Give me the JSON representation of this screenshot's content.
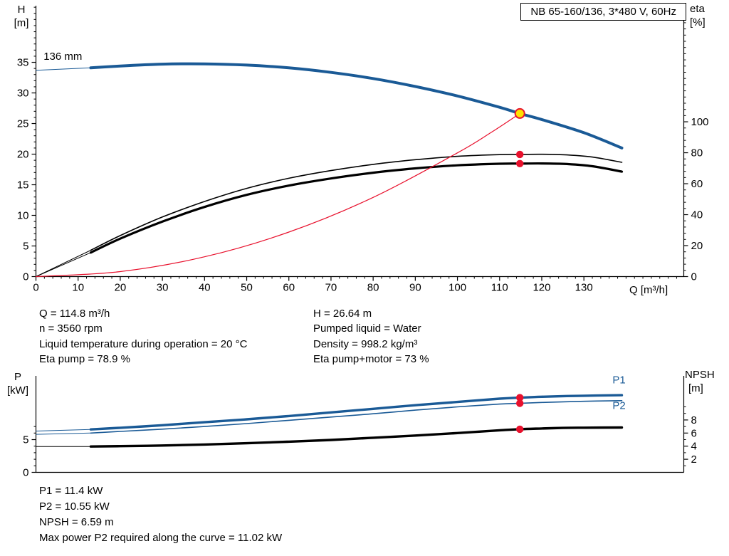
{
  "header": {
    "title": "NB 65-160/136, 3*480 V, 60Hz"
  },
  "axis_labels": {
    "h": "H",
    "h_unit": "[m]",
    "eta": "eta",
    "eta_unit": "[%]",
    "q": "Q [m³/h]",
    "p": "P",
    "p_unit": "[kW]",
    "npsh": "NPSH",
    "npsh_unit": "[m]"
  },
  "operating_data": {
    "left": [
      "Q = 114.8 m³/h",
      "n = 3560 rpm",
      "Liquid temperature during operation = 20 °C",
      "Eta pump = 78.9 %"
    ],
    "right": [
      "H = 26.64 m",
      "Pumped liquid = Water",
      "Density = 998.2 kg/m³",
      "Eta pump+motor = 73 %"
    ]
  },
  "results": [
    "P1 = 11.4 kW",
    "P2 = 10.55 kW",
    "NPSH = 6.59 m",
    "Max power P2 required along the curve = 11.02 kW"
  ],
  "colors": {
    "curve_blue": "#1a5a96",
    "curve_black": "#000000",
    "curve_red": "#e8112d",
    "duty_fill": "#ffe100",
    "axis": "#000000"
  },
  "chart_data": [
    {
      "id": "qh",
      "type": "line",
      "title": "NB 65-160/136, 3*480 V, 60Hz",
      "xlabel": "Q [m³/h]",
      "ylabel_left": "H [m]",
      "ylabel_right": "eta [%]",
      "xlim": [
        0,
        153.7
      ],
      "ylim_left": [
        0,
        44.25
      ],
      "ylim_right": [
        0,
        175
      ],
      "x_ticks": [
        0,
        10,
        20,
        30,
        40,
        50,
        60,
        70,
        80,
        90,
        100,
        110,
        120,
        130
      ],
      "y_left_ticks": [
        0,
        5,
        10,
        15,
        20,
        25,
        30,
        35
      ],
      "y_right_ticks": [
        0,
        20,
        40,
        60,
        80,
        100
      ],
      "series": [
        {
          "name": "eta-pump",
          "axis": "right",
          "color": "#000000",
          "width": 1.6,
          "lead": [
            [
              0,
              0
            ],
            [
              13,
              17
            ]
          ],
          "points": [
            [
              13,
              17
            ],
            [
              20,
              26.5
            ],
            [
              30,
              38.5
            ],
            [
              40,
              48.5
            ],
            [
              50,
              57
            ],
            [
              60,
              63.5
            ],
            [
              70,
              68.5
            ],
            [
              80,
              72.5
            ],
            [
              90,
              75.5
            ],
            [
              100,
              77.7
            ],
            [
              110,
              78.8
            ],
            [
              114.8,
              78.9
            ],
            [
              120,
              79
            ],
            [
              126,
              78.6
            ],
            [
              132,
              77.2
            ],
            [
              139,
              73.8
            ]
          ]
        },
        {
          "name": "eta-pump-motor",
          "axis": "right",
          "color": "#000000",
          "width": 3.2,
          "lead": [
            [
              0,
              0
            ],
            [
              13,
              15.5
            ]
          ],
          "points": [
            [
              13,
              15.5
            ],
            [
              20,
              24.5
            ],
            [
              30,
              35.5
            ],
            [
              40,
              45
            ],
            [
              50,
              52.8
            ],
            [
              60,
              58.8
            ],
            [
              70,
              63.4
            ],
            [
              80,
              67.1
            ],
            [
              90,
              69.9
            ],
            [
              100,
              71.9
            ],
            [
              110,
              72.9
            ],
            [
              114.8,
              73
            ],
            [
              120,
              73.1
            ],
            [
              126,
              72.7
            ],
            [
              132,
              71.3
            ],
            [
              139,
              67.8
            ]
          ]
        },
        {
          "name": "duty-flow-parabola",
          "axis": "left",
          "color": "#e8112d",
          "width": 1.2,
          "points": [
            [
              0,
              0
            ],
            [
              20,
              0.81
            ],
            [
              40,
              3.23
            ],
            [
              60,
              7.27
            ],
            [
              80,
              12.93
            ],
            [
              100,
              20.21
            ],
            [
              108,
              23.55
            ],
            [
              114.8,
              26.64
            ]
          ]
        },
        {
          "name": "head-curve-136mm",
          "axis": "left",
          "color": "#1a5a96",
          "width": 4,
          "lead": [
            [
              0,
              33.7
            ],
            [
              13,
              34.1
            ]
          ],
          "points": [
            [
              13,
              34.1
            ],
            [
              20,
              34.4
            ],
            [
              30,
              34.7
            ],
            [
              40,
              34.75
            ],
            [
              50,
              34.55
            ],
            [
              60,
              34.1
            ],
            [
              70,
              33.35
            ],
            [
              80,
              32.35
            ],
            [
              90,
              31.05
            ],
            [
              100,
              29.5
            ],
            [
              110,
              27.65
            ],
            [
              114.8,
              26.64
            ],
            [
              120,
              25.65
            ],
            [
              130,
              23.5
            ],
            [
              139,
              21
            ]
          ]
        }
      ],
      "markers": [
        {
          "name": "eta-pump-point",
          "x": 114.8,
          "y": 78.9,
          "axis": "right",
          "r": 5.2,
          "fill": "#e8112d"
        },
        {
          "name": "eta-pump-motor-point",
          "x": 114.8,
          "y": 73,
          "axis": "right",
          "r": 5.2,
          "fill": "#e8112d"
        },
        {
          "name": "duty-point",
          "x": 114.8,
          "y": 26.64,
          "axis": "left",
          "r": 6.5,
          "fill": "#ffe100",
          "stroke": "#e8112d",
          "interactable": true
        }
      ],
      "annotations": [
        {
          "text": "136 mm",
          "x": 1.8,
          "y": 35.9,
          "axis": "left",
          "color": "#000000"
        }
      ]
    },
    {
      "id": "power_npsh",
      "type": "line",
      "xlabel": "",
      "ylabel_left": "P [kW]",
      "ylabel_right": "NPSH [m]",
      "xlim": [
        0,
        153.7
      ],
      "ylim_left": [
        0,
        14.73
      ],
      "ylim_right": [
        0,
        14.73
      ],
      "x_ticks": [],
      "y_left_ticks": [
        0,
        5
      ],
      "y_right_ticks": [
        2,
        4,
        6,
        8
      ],
      "series": [
        {
          "name": "p2-power",
          "axis": "left",
          "color": "#1a5a96",
          "width": 1.6,
          "lead": [
            [
              0,
              5.8
            ],
            [
              13,
              6.0
            ]
          ],
          "points": [
            [
              13,
              6.0
            ],
            [
              20,
              6.25
            ],
            [
              30,
              6.6
            ],
            [
              40,
              7.0
            ],
            [
              50,
              7.45
            ],
            [
              60,
              7.95
            ],
            [
              70,
              8.45
            ],
            [
              80,
              8.95
            ],
            [
              90,
              9.5
            ],
            [
              100,
              10.0
            ],
            [
              110,
              10.42
            ],
            [
              114.8,
              10.55
            ],
            [
              120,
              10.67
            ],
            [
              130,
              10.85
            ],
            [
              139,
              10.95
            ]
          ]
        },
        {
          "name": "p1-power",
          "axis": "left",
          "color": "#1a5a96",
          "width": 3.4,
          "lead": [
            [
              0,
              6.3
            ],
            [
              13,
              6.55
            ]
          ],
          "points": [
            [
              13,
              6.55
            ],
            [
              20,
              6.8
            ],
            [
              30,
              7.2
            ],
            [
              40,
              7.65
            ],
            [
              50,
              8.1
            ],
            [
              60,
              8.6
            ],
            [
              70,
              9.15
            ],
            [
              80,
              9.7
            ],
            [
              90,
              10.25
            ],
            [
              100,
              10.75
            ],
            [
              110,
              11.25
            ],
            [
              114.8,
              11.4
            ],
            [
              120,
              11.55
            ],
            [
              130,
              11.7
            ],
            [
              139,
              11.78
            ]
          ]
        },
        {
          "name": "npsh-curve",
          "axis": "right",
          "color": "#000000",
          "width": 3.4,
          "lead": [
            [
              0,
              3.95
            ],
            [
              13,
              3.95
            ]
          ],
          "points": [
            [
              13,
              3.95
            ],
            [
              20,
              4.0
            ],
            [
              30,
              4.1
            ],
            [
              40,
              4.25
            ],
            [
              50,
              4.45
            ],
            [
              60,
              4.68
            ],
            [
              70,
              4.95
            ],
            [
              80,
              5.28
            ],
            [
              90,
              5.62
            ],
            [
              100,
              6.0
            ],
            [
              110,
              6.42
            ],
            [
              114.8,
              6.59
            ],
            [
              120,
              6.7
            ],
            [
              125,
              6.78
            ],
            [
              130,
              6.82
            ],
            [
              139,
              6.85
            ]
          ]
        }
      ],
      "markers": [
        {
          "name": "p1-point",
          "x": 114.8,
          "y": 11.4,
          "axis": "left",
          "r": 5.2,
          "fill": "#e8112d"
        },
        {
          "name": "p2-point",
          "x": 114.8,
          "y": 10.55,
          "axis": "left",
          "r": 5.2,
          "fill": "#e8112d"
        },
        {
          "name": "npsh-point",
          "x": 114.8,
          "y": 6.59,
          "axis": "right",
          "r": 5.2,
          "fill": "#e8112d"
        }
      ],
      "annotations": [
        {
          "text": "P1",
          "x": 136.8,
          "y": 14.0,
          "axis": "left",
          "color": "#1a5a96"
        },
        {
          "text": "P2",
          "x": 136.8,
          "y": 10.1,
          "axis": "left",
          "color": "#1a5a96"
        }
      ]
    }
  ]
}
